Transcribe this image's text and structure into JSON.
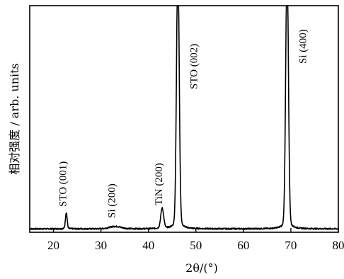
{
  "chart_data": {
    "type": "line",
    "title": "",
    "xlabel": "2θ/(°)",
    "ylabel": "相对强度 / arb. units",
    "xlim": [
      15,
      80
    ],
    "ylim": [
      0,
      100
    ],
    "xticks": [
      20,
      30,
      40,
      50,
      60,
      70,
      80
    ],
    "x_tick_labels": [
      "20",
      "30",
      "40",
      "50",
      "60",
      "70",
      "80"
    ],
    "y_tick_labels": [],
    "grid": false,
    "legend": "none",
    "peaks": [
      {
        "label": "STO (001)",
        "x": 22.7,
        "height": 8
      },
      {
        "label": "Si (200)",
        "x": 33.0,
        "height": 1.2
      },
      {
        "label": "TiN (200)",
        "x": 42.9,
        "height": 10
      },
      {
        "label": "STO (002)",
        "x": 46.2,
        "height": 135
      },
      {
        "label": "Si (400)",
        "x": 69.2,
        "height": 135
      }
    ],
    "baseline": 1.5
  }
}
